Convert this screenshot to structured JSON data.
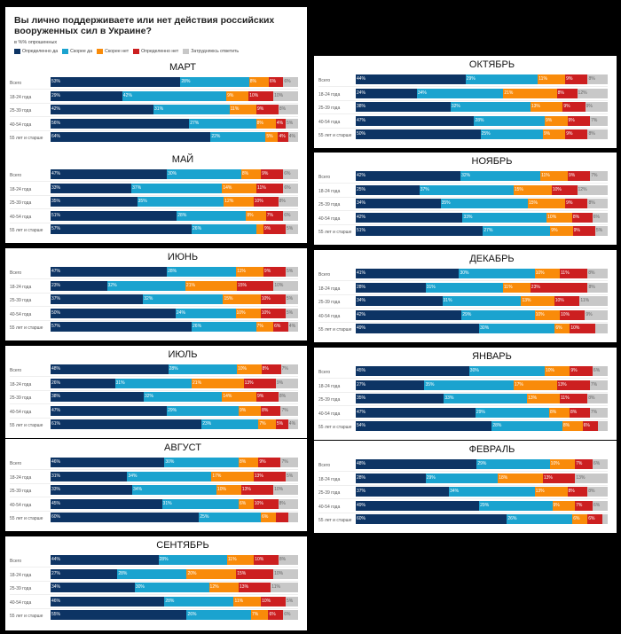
{
  "header": {
    "title": "Вы лично поддерживаете или нет действия российских вооруженных сил в Украине?",
    "subtitle": "в %% опрошенных"
  },
  "legend": [
    {
      "label": "Определенно да",
      "color": "#0d3464"
    },
    {
      "label": "Скорее да",
      "color": "#1ba3cf"
    },
    {
      "label": "Скорее нет",
      "color": "#f98b0a"
    },
    {
      "label": "Определенно нет",
      "color": "#cc1f20"
    },
    {
      "label": "Затрудняюсь ответить",
      "color": "#c8c8c8"
    }
  ],
  "chart_data": {
    "type": "bar",
    "orientation": "horizontal-stacked-100",
    "title": "Вы лично поддерживаете или нет действия российских вооруженных сил в Украине?",
    "subtitle": "в %% опрошенных",
    "series_names": [
      "Определенно да",
      "Скорее да",
      "Скорее нет",
      "Определенно нет",
      "Затрудняюсь ответить"
    ],
    "categories": [
      "Всего",
      "18-24 года",
      "25-39 года",
      "40-54 года",
      "55 лет и старше"
    ],
    "legend_position": "top-left",
    "panels": [
      {
        "month": "МАРТ",
        "rows": [
          [
            53,
            28,
            8,
            6,
            6
          ],
          [
            29,
            42,
            9,
            10,
            10
          ],
          [
            42,
            31,
            11,
            9,
            8
          ],
          [
            56,
            27,
            8,
            4,
            5
          ],
          [
            64,
            22,
            5,
            4,
            4
          ]
        ],
        "hidden_labels": [
          [],
          [],
          [],
          [],
          []
        ]
      },
      {
        "month": "МАЙ",
        "rows": [
          [
            47,
            30,
            8,
            9,
            6
          ],
          [
            33,
            37,
            14,
            11,
            6
          ],
          [
            35,
            35,
            12,
            10,
            8
          ],
          [
            51,
            28,
            8,
            7,
            6
          ],
          [
            57,
            26,
            3,
            9,
            5
          ]
        ],
        "hidden_labels": [
          [],
          [],
          [],
          [],
          [
            2
          ]
        ]
      },
      {
        "month": "ИЮНЬ",
        "rows": [
          [
            47,
            28,
            11,
            9,
            5
          ],
          [
            23,
            32,
            21,
            15,
            10
          ],
          [
            37,
            32,
            15,
            10,
            5
          ],
          [
            50,
            24,
            10,
            10,
            5
          ],
          [
            57,
            26,
            7,
            6,
            4
          ]
        ],
        "hidden_labels": [
          [],
          [],
          [],
          [],
          []
        ]
      },
      {
        "month": "ИЮЛЬ",
        "rows": [
          [
            48,
            28,
            10,
            8,
            7
          ],
          [
            26,
            31,
            21,
            13,
            9
          ],
          [
            38,
            32,
            14,
            9,
            8
          ],
          [
            47,
            29,
            9,
            8,
            7
          ],
          [
            61,
            23,
            7,
            5,
            4
          ]
        ],
        "hidden_labels": [
          [],
          [],
          [],
          [],
          []
        ]
      },
      {
        "month": "АВГУСТ",
        "rows": [
          [
            46,
            30,
            8,
            9,
            7
          ],
          [
            31,
            34,
            17,
            13,
            5
          ],
          [
            33,
            34,
            10,
            13,
            10
          ],
          [
            45,
            31,
            6,
            10,
            8
          ],
          [
            60,
            25,
            6,
            5,
            4
          ]
        ],
        "hidden_labels": [
          [],
          [],
          [],
          [],
          [
            3,
            4
          ]
        ]
      },
      {
        "month": "СЕНТЯБРЬ",
        "rows": [
          [
            44,
            28,
            11,
            10,
            8
          ],
          [
            27,
            28,
            20,
            15,
            10
          ],
          [
            34,
            30,
            12,
            13,
            11
          ],
          [
            46,
            28,
            11,
            10,
            5
          ],
          [
            55,
            26,
            7,
            6,
            6
          ]
        ],
        "hidden_labels": [
          [],
          [],
          [],
          [],
          []
        ]
      },
      {
        "month": "ОКТЯБРЬ",
        "rows": [
          [
            44,
            29,
            11,
            9,
            8
          ],
          [
            24,
            34,
            21,
            8,
            12
          ],
          [
            38,
            32,
            13,
            9,
            9
          ],
          [
            47,
            28,
            9,
            9,
            7
          ],
          [
            50,
            25,
            9,
            9,
            8
          ]
        ],
        "hidden_labels": [
          [],
          [],
          [],
          [],
          []
        ]
      },
      {
        "month": "НОЯБРЬ",
        "rows": [
          [
            42,
            32,
            11,
            9,
            7
          ],
          [
            25,
            37,
            15,
            10,
            12
          ],
          [
            34,
            35,
            15,
            9,
            8
          ],
          [
            42,
            33,
            10,
            8,
            6
          ],
          [
            51,
            27,
            9,
            9,
            5
          ]
        ],
        "hidden_labels": [
          [],
          [],
          [],
          [],
          []
        ]
      },
      {
        "month": "ДЕКАБРЬ",
        "rows": [
          [
            41,
            30,
            10,
            11,
            8
          ],
          [
            28,
            31,
            11,
            23,
            8
          ],
          [
            34,
            31,
            13,
            10,
            11
          ],
          [
            42,
            29,
            10,
            10,
            9
          ],
          [
            49,
            30,
            6,
            10,
            5
          ]
        ],
        "hidden_labels": [
          [],
          [],
          [],
          [],
          [
            4
          ]
        ]
      },
      {
        "month": "ЯНВАРЬ",
        "rows": [
          [
            45,
            30,
            10,
            9,
            6
          ],
          [
            27,
            35,
            17,
            13,
            7
          ],
          [
            35,
            33,
            13,
            11,
            8
          ],
          [
            47,
            29,
            8,
            8,
            7
          ],
          [
            54,
            28,
            8,
            6,
            4
          ]
        ],
        "hidden_labels": [
          [],
          [],
          [],
          [],
          [
            4
          ]
        ]
      },
      {
        "month": "ФЕВРАЛЬ",
        "rows": [
          [
            48,
            29,
            10,
            7,
            6
          ],
          [
            28,
            29,
            18,
            13,
            13
          ],
          [
            37,
            34,
            13,
            8,
            8
          ],
          [
            49,
            29,
            9,
            7,
            6
          ],
          [
            60,
            26,
            6,
            6,
            2
          ]
        ],
        "hidden_labels": [
          [],
          [],
          [],
          [],
          [
            4
          ]
        ]
      }
    ]
  }
}
